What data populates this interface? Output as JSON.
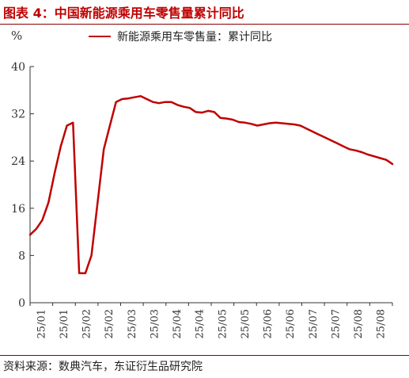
{
  "figure": {
    "title": "图表 4：中国新能源乘用车零售量累计同比",
    "source": "资料来源：数典汽车，东证衍生品研究院"
  },
  "colors": {
    "line": "#c00000",
    "rule": "#8b0000",
    "axis": "#333333"
  },
  "chart_data": {
    "type": "line",
    "unit_label": "%",
    "legend_position": "top",
    "grid": false,
    "ylim": [
      0,
      40
    ],
    "yticks": [
      0,
      8,
      16,
      24,
      32,
      40
    ],
    "xticks": [
      "25/01",
      "25/01",
      "25/02",
      "25/02",
      "25/03",
      "25/03",
      "25/04",
      "25/04",
      "25/05",
      "25/05",
      "25/06",
      "25/06",
      "25/07",
      "25/07",
      "25/08",
      "25/08"
    ],
    "series": [
      {
        "name": "新能源乘用车零售量：累计同比",
        "values": [
          11.5,
          12.5,
          14.0,
          17.0,
          22.0,
          26.5,
          30.0,
          30.5,
          5.0,
          5.0,
          8.0,
          17.0,
          26.0,
          30.0,
          34.0,
          34.5,
          34.6,
          34.8,
          35.0,
          34.5,
          34.0,
          33.8,
          34.0,
          34.0,
          33.5,
          33.2,
          33.0,
          32.3,
          32.2,
          32.5,
          32.3,
          31.3,
          31.2,
          31.0,
          30.6,
          30.5,
          30.3,
          30.0,
          30.2,
          30.4,
          30.5,
          30.4,
          30.3,
          30.2,
          30.0,
          29.5,
          29.0,
          28.5,
          28.0,
          27.5,
          27.0,
          26.5,
          26.0,
          25.8,
          25.5,
          25.1,
          24.8,
          24.5,
          24.2,
          23.5
        ]
      }
    ]
  }
}
